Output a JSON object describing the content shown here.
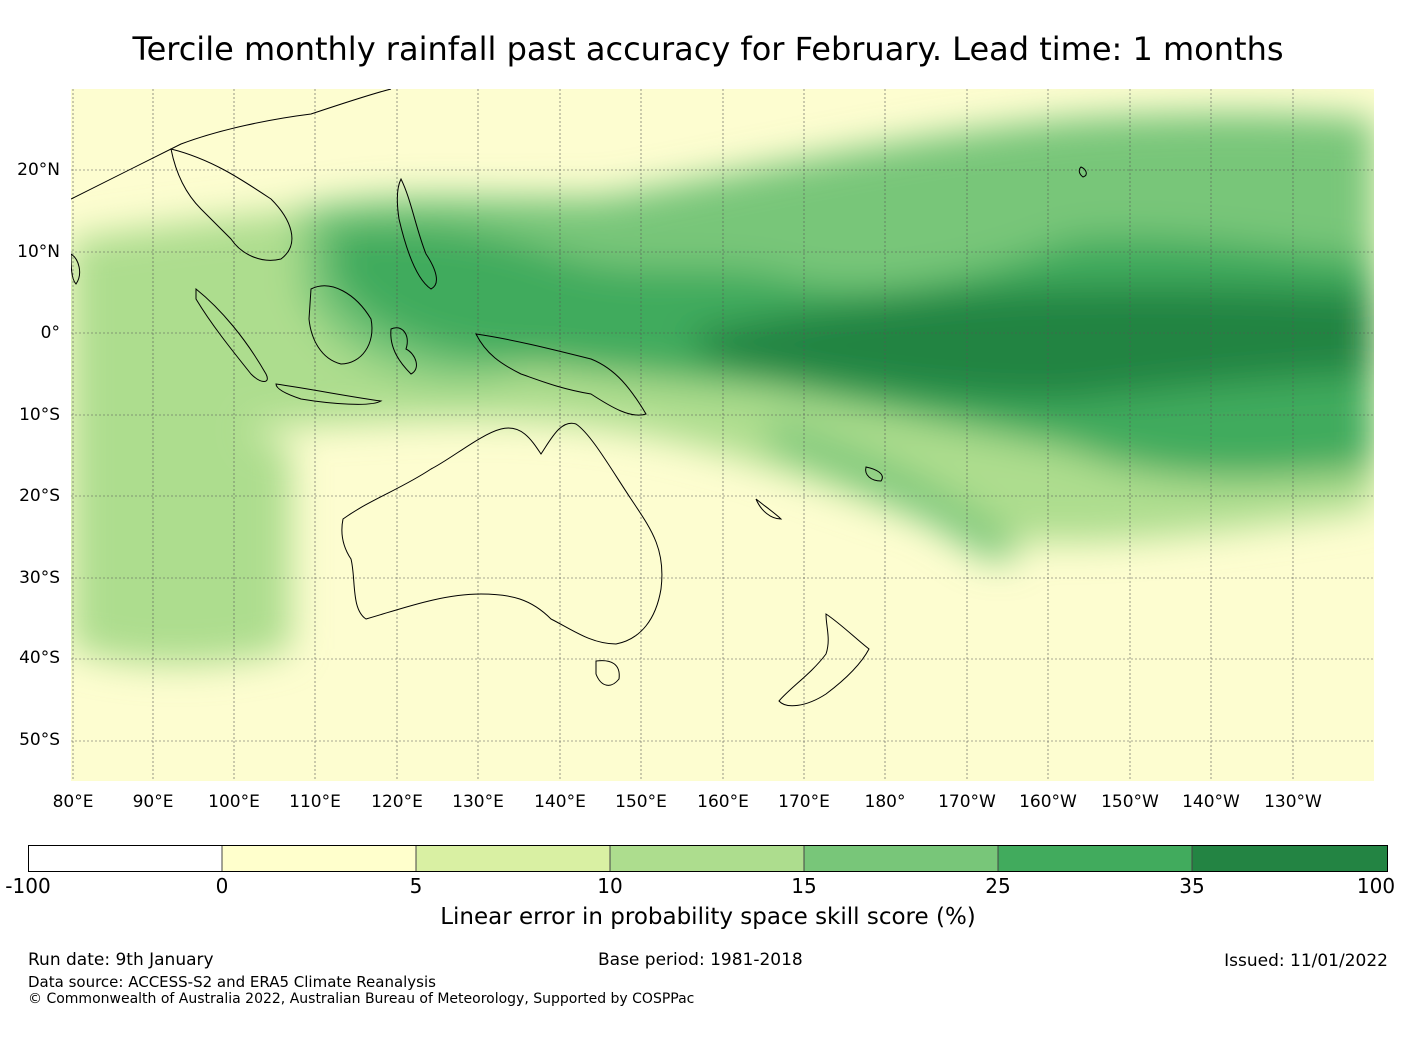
{
  "title": "Tercile monthly rainfall past accuracy for February. Lead time: 1 months",
  "map": {
    "lon_labels": [
      "80°E",
      "90°E",
      "100°E",
      "110°E",
      "120°E",
      "130°E",
      "140°E",
      "150°E",
      "160°E",
      "170°E",
      "180°",
      "170°W",
      "160°W",
      "150°W",
      "140°W",
      "130°W"
    ],
    "lat_labels": [
      "20°N",
      "10°N",
      "0°",
      "10°S",
      "20°S",
      "30°S",
      "40°S",
      "50°S"
    ],
    "lon_range": [
      80,
      240
    ],
    "lat_range": [
      -55,
      30
    ]
  },
  "colorbar": {
    "label": "Linear error in probability space skill score (%)",
    "ticks": [
      "-100",
      "0",
      "5",
      "10",
      "15",
      "25",
      "35",
      "100"
    ],
    "colors": [
      "#ffffff",
      "#ffffcc",
      "#d9f0a3",
      "#addd8e",
      "#78c679",
      "#41ab5d",
      "#238443"
    ]
  },
  "footer": {
    "run_date": "Run date: 9th January",
    "base_period": "Base period: 1981-2018",
    "issued": "Issued: 11/01/2022",
    "data_source": "Data source: ACCESS-S2 and ERA5 Climate Reanalysis",
    "copyright": "© Commonwealth of Australia 2022, Australian Bureau of Meteorology, Supported by COSPPac"
  }
}
